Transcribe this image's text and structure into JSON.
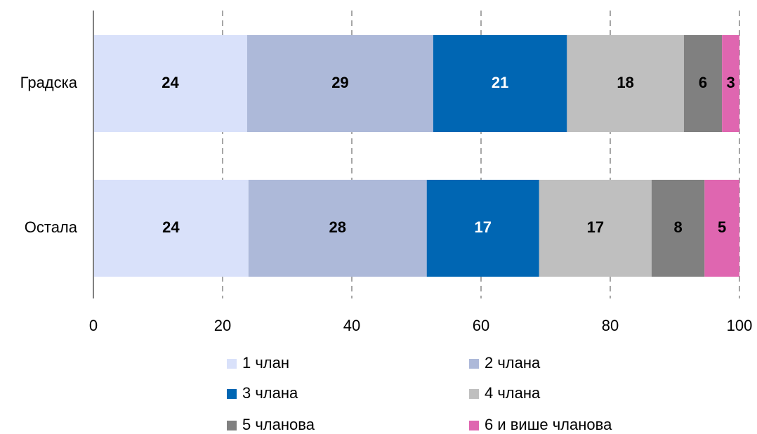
{
  "chart_data": {
    "type": "stacked-barh",
    "categories": [
      "Градска",
      "Остала"
    ],
    "series": [
      {
        "name": "1 члан",
        "color": "#d9e1fa",
        "label_color": "#000000",
        "values": [
          23.8,
          24.0
        ],
        "value_labels": [
          "24",
          "24"
        ]
      },
      {
        "name": "2 члана",
        "color": "#adb9d9",
        "label_color": "#000000",
        "values": [
          28.8,
          27.6
        ],
        "value_labels": [
          "29",
          "28"
        ]
      },
      {
        "name": "3 члана",
        "color": "#0066b3",
        "label_color": "#ffffff",
        "values": [
          20.7,
          17.4
        ],
        "value_labels": [
          "21",
          "17"
        ]
      },
      {
        "name": "4 члана",
        "color": "#bfbfbf",
        "label_color": "#000000",
        "values": [
          18.1,
          17.4
        ],
        "value_labels": [
          "18",
          "17"
        ]
      },
      {
        "name": "5 чланова",
        "color": "#808080",
        "label_color": "#000000",
        "values": [
          5.9,
          8.2
        ],
        "value_labels": [
          "6",
          "8"
        ]
      },
      {
        "name": "6 и више чланова",
        "color": "#df66b0",
        "label_color": "#000000",
        "values": [
          2.7,
          5.4
        ],
        "value_labels": [
          "3",
          "5"
        ]
      }
    ],
    "xlim": [
      0,
      100
    ],
    "xticks": [
      0,
      20,
      40,
      60,
      80,
      100
    ],
    "grid": true,
    "legend": "bottom"
  }
}
